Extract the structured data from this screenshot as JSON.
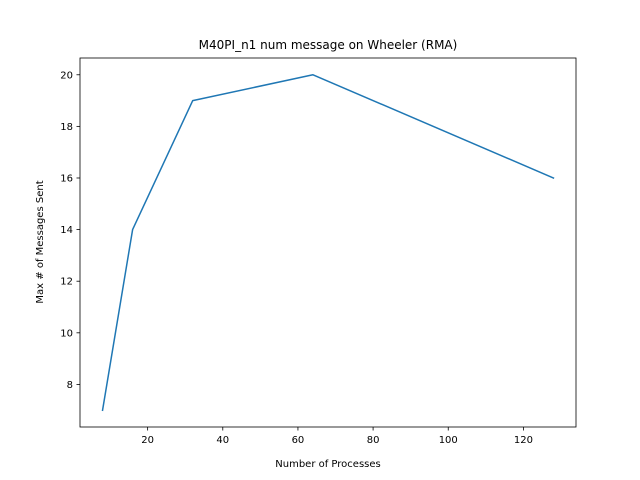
{
  "chart_data": {
    "type": "line",
    "title": "M40PI_n1 num message on Wheeler (RMA)",
    "xlabel": "Number of Processes",
    "ylabel": "Max # of Messages Sent",
    "x": [
      8,
      16,
      32,
      64,
      128
    ],
    "series": [
      {
        "values": [
          7,
          14,
          19,
          20,
          16
        ],
        "color": "#1f77b4"
      }
    ],
    "xlim": [
      2,
      134
    ],
    "ylim": [
      6.35,
      20.65
    ],
    "xticks": [
      20,
      40,
      60,
      80,
      100,
      120
    ],
    "yticks": [
      8,
      10,
      12,
      14,
      16,
      18,
      20
    ],
    "grid": false,
    "legend": "none"
  }
}
